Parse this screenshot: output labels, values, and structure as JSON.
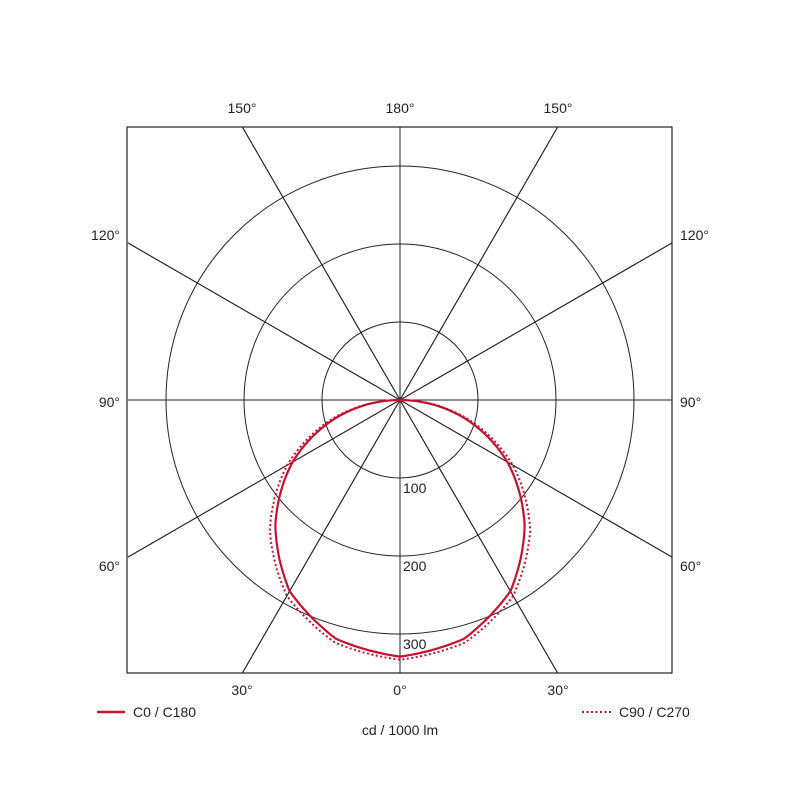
{
  "chart_data": {
    "type": "polar",
    "unit_label": "cd / 1000 lm",
    "radial_ticks": [
      100,
      200,
      300
    ],
    "radial_max": 350,
    "angle_ticks": {
      "top": [
        "150°",
        "180°",
        "150°"
      ],
      "left": [
        "120°",
        "90°",
        "60°"
      ],
      "right": [
        "120°",
        "90°",
        "60°"
      ],
      "bottom": [
        "30°",
        "0°",
        "30°"
      ]
    },
    "grid": true,
    "legend_placement": "bottom",
    "angles_deg": [
      0,
      15,
      30,
      45,
      60,
      75,
      90
    ],
    "series": [
      {
        "name": "C0 / C180",
        "style": "solid",
        "color": "#c8102e",
        "values": [
          329,
          317,
          283,
          226,
          159,
          82,
          0
        ]
      },
      {
        "name": "C90 / C270",
        "style": "dotted",
        "color": "#c8102e",
        "values": [
          333,
          322,
          290,
          236,
          167,
          87,
          0
        ]
      }
    ]
  }
}
